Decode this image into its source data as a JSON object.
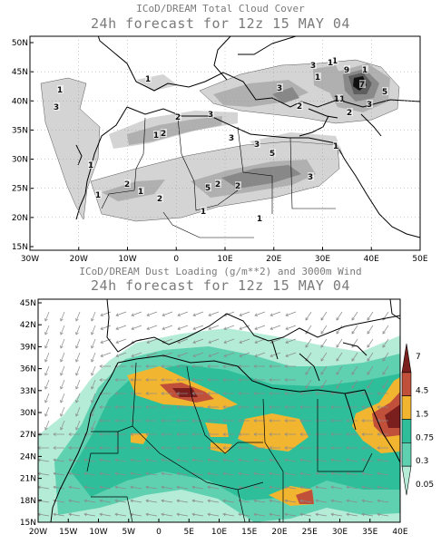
{
  "top_map": {
    "title_line1": "ICoD/DREAM Total Cloud Cover",
    "title_line2": "24h forecast for 12z 15 MAY 04",
    "lat_labels": [
      "50N",
      "45N",
      "40N",
      "35N",
      "30N",
      "25N",
      "20N",
      "15N"
    ],
    "lon_labels": [
      "30W",
      "20W",
      "10W",
      "0",
      "10E",
      "20E",
      "30E",
      "40E",
      "50E"
    ],
    "contour_labels": [
      "3",
      "1",
      "1",
      "1",
      "1",
      "2",
      "3",
      "2",
      "3",
      "1",
      "1",
      "3",
      "5",
      "1",
      "2",
      "1",
      "2",
      "5",
      "2",
      "3",
      "1",
      "2",
      "3",
      "1",
      "1",
      "9",
      "7",
      "5",
      "1",
      "3",
      "11",
      "2",
      "3",
      "2",
      "1"
    ],
    "colors": {
      "light": "#d4d4d4",
      "mid": "#b0b0b0",
      "dark": "#888888",
      "darker": "#5e5e5e",
      "darkest": "#111111"
    }
  },
  "bottom_map": {
    "title_line1": "ICoD/DREAM  Dust Loading (g/m**2) and 3000m Wind",
    "title_line2": "24h forecast for 12z 15 MAY 04",
    "lat_labels": [
      "45N",
      "42N",
      "39N",
      "36N",
      "33N",
      "30N",
      "27N",
      "24N",
      "21N",
      "18N",
      "15N"
    ],
    "lon_labels": [
      "20W",
      "15W",
      "10W",
      "5W",
      "0",
      "5E",
      "10E",
      "15E",
      "20E",
      "25E",
      "30E",
      "35E",
      "40E"
    ],
    "colorbar_labels": [
      "7",
      "4.5",
      "1.5",
      "0.75",
      "0.3",
      "0.05"
    ],
    "colors": {
      "c005": "#b4ecd8",
      "c03": "#5fd1b0",
      "c075": "#2ebf9a",
      "c15": "#f2b530",
      "c45": "#c0503a",
      "c7": "#7a1e1e",
      "arrow": "#8a8a8a"
    }
  }
}
